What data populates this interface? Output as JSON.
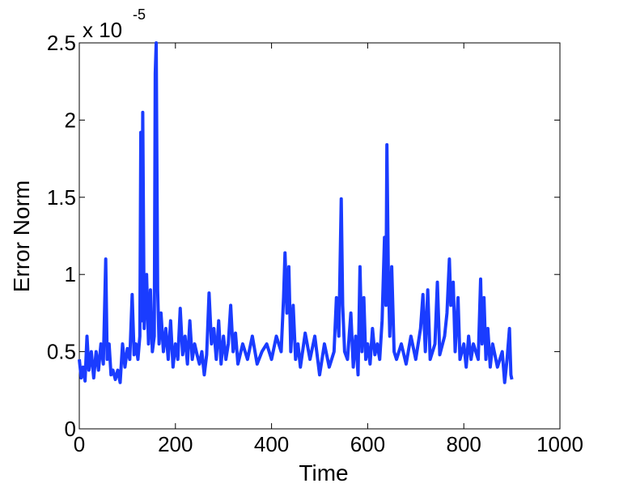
{
  "chart_data": {
    "type": "line",
    "xlabel": "Time",
    "ylabel": "Error Norm",
    "y_multiplier": "x 10",
    "y_exponent": "-5",
    "xlim": [
      0,
      1000
    ],
    "xticks": [
      0,
      200,
      400,
      600,
      800,
      1000
    ],
    "ylim": [
      0,
      2.5
    ],
    "yticks": [
      0,
      0.5,
      1,
      1.5,
      2,
      2.5
    ],
    "grid": false,
    "x": [
      0,
      4,
      8,
      12,
      16,
      20,
      25,
      30,
      35,
      40,
      45,
      50,
      55,
      58,
      62,
      66,
      70,
      75,
      80,
      85,
      90,
      95,
      100,
      105,
      110,
      114,
      118,
      122,
      126,
      128,
      130,
      132,
      135,
      140,
      144,
      148,
      152,
      156,
      158,
      160,
      163,
      166,
      170,
      175,
      180,
      185,
      190,
      195,
      200,
      205,
      210,
      215,
      220,
      225,
      230,
      235,
      240,
      245,
      250,
      255,
      260,
      265,
      270,
      275,
      280,
      285,
      290,
      295,
      300,
      305,
      310,
      315,
      320,
      325,
      330,
      340,
      350,
      360,
      370,
      380,
      390,
      400,
      410,
      420,
      425,
      428,
      432,
      436,
      440,
      445,
      450,
      455,
      460,
      470,
      480,
      490,
      500,
      510,
      520,
      530,
      535,
      540,
      545,
      548,
      552,
      558,
      565,
      570,
      575,
      580,
      584,
      588,
      592,
      596,
      600,
      605,
      610,
      615,
      620,
      625,
      630,
      635,
      638,
      640,
      643,
      646,
      650,
      655,
      660,
      670,
      680,
      690,
      700,
      710,
      715,
      720,
      725,
      730,
      740,
      745,
      750,
      760,
      765,
      770,
      773,
      778,
      782,
      788,
      792,
      800,
      805,
      810,
      815,
      820,
      830,
      835,
      838,
      842,
      846,
      850,
      855,
      860,
      870,
      880,
      885,
      890,
      895,
      898,
      900
    ],
    "series": [
      {
        "name": "Error Norm",
        "color": "#1a3cff",
        "values": [
          0.45,
          0.33,
          0.4,
          0.31,
          0.6,
          0.38,
          0.5,
          0.33,
          0.5,
          0.38,
          0.55,
          0.42,
          1.1,
          0.45,
          0.55,
          0.35,
          0.38,
          0.32,
          0.38,
          0.3,
          0.55,
          0.4,
          0.52,
          0.45,
          0.87,
          0.48,
          0.55,
          0.45,
          0.6,
          1.92,
          0.7,
          2.05,
          0.65,
          1.0,
          0.55,
          0.9,
          0.5,
          0.6,
          2.3,
          2.5,
          0.9,
          0.55,
          0.75,
          0.5,
          0.65,
          0.45,
          0.7,
          0.4,
          0.55,
          0.45,
          0.78,
          0.48,
          0.6,
          0.42,
          0.7,
          0.45,
          0.55,
          0.48,
          0.42,
          0.5,
          0.35,
          0.48,
          0.88,
          0.55,
          0.65,
          0.45,
          0.7,
          0.42,
          0.6,
          0.45,
          0.55,
          0.8,
          0.5,
          0.62,
          0.42,
          0.55,
          0.45,
          0.6,
          0.42,
          0.5,
          0.55,
          0.45,
          0.6,
          0.5,
          0.85,
          1.14,
          0.75,
          1.05,
          0.5,
          0.8,
          0.45,
          0.55,
          0.4,
          0.62,
          0.45,
          0.6,
          0.35,
          0.55,
          0.4,
          0.5,
          0.85,
          0.6,
          1.49,
          0.8,
          0.5,
          0.45,
          0.75,
          0.4,
          0.6,
          0.35,
          1.05,
          0.5,
          0.85,
          0.45,
          0.55,
          0.42,
          0.65,
          0.48,
          0.55,
          0.45,
          0.7,
          1.24,
          0.8,
          1.84,
          1.0,
          0.6,
          1.05,
          0.5,
          0.45,
          0.55,
          0.42,
          0.6,
          0.45,
          0.65,
          0.87,
          0.5,
          0.9,
          0.45,
          0.55,
          0.95,
          0.48,
          0.6,
          0.75,
          1.1,
          0.8,
          0.95,
          0.5,
          0.85,
          0.45,
          0.55,
          0.4,
          0.6,
          0.45,
          0.55,
          0.45,
          0.97,
          0.55,
          0.85,
          0.45,
          0.65,
          0.4,
          0.55,
          0.4,
          0.5,
          0.3,
          0.45,
          0.65,
          0.35,
          0.32
        ]
      }
    ]
  }
}
